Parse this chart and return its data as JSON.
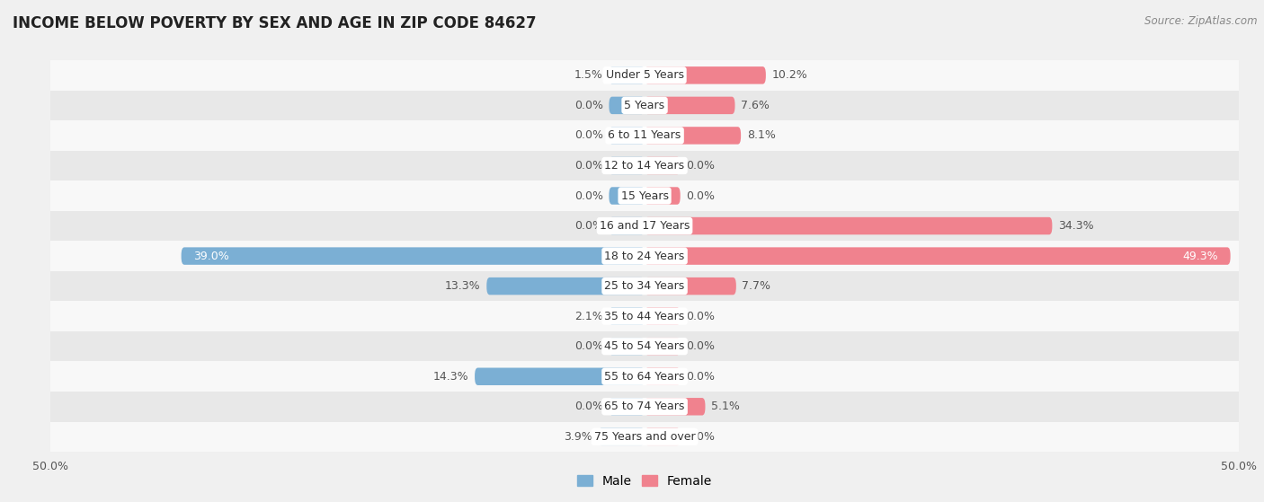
{
  "title": "INCOME BELOW POVERTY BY SEX AND AGE IN ZIP CODE 84627",
  "source": "Source: ZipAtlas.com",
  "categories": [
    "Under 5 Years",
    "5 Years",
    "6 to 11 Years",
    "12 to 14 Years",
    "15 Years",
    "16 and 17 Years",
    "18 to 24 Years",
    "25 to 34 Years",
    "35 to 44 Years",
    "45 to 54 Years",
    "55 to 64 Years",
    "65 to 74 Years",
    "75 Years and over"
  ],
  "male": [
    1.5,
    0.0,
    0.0,
    0.0,
    0.0,
    0.0,
    39.0,
    13.3,
    2.1,
    0.0,
    14.3,
    0.0,
    3.9
  ],
  "female": [
    10.2,
    7.6,
    8.1,
    0.0,
    0.0,
    34.3,
    49.3,
    7.7,
    0.0,
    0.0,
    0.0,
    5.1,
    0.0
  ],
  "male_color": "#7bafd4",
  "female_color": "#f0828e",
  "bar_height": 0.58,
  "min_stub": 3.0,
  "xlim": 50.0,
  "background_color": "#f0f0f0",
  "row_bg_even": "#f8f8f8",
  "row_bg_odd": "#e8e8e8",
  "title_fontsize": 12,
  "label_fontsize": 9,
  "tick_fontsize": 9,
  "source_fontsize": 8.5,
  "cat_fontsize": 9
}
